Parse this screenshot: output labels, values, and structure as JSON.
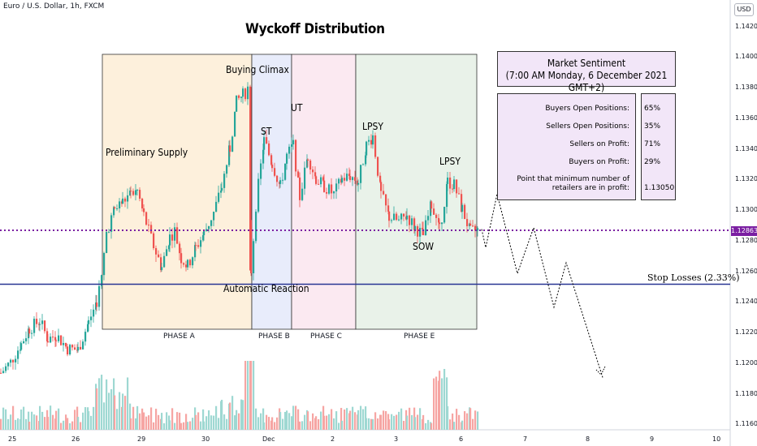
{
  "header": {
    "symbol": "Euro / U.S. Dollar, 1h, FXCM",
    "currency": "USD",
    "title": "Wyckoff Distribution"
  },
  "annotations": {
    "preliminary_supply": "Preliminary Supply",
    "buying_climax": "Buying Climax",
    "st": "ST",
    "ut": "UT",
    "lpsy1": "LPSY",
    "lpsy2": "LPSY",
    "sow": "SOW",
    "automatic_reaction": "Automatic Reaction",
    "stop_losses": "Stop Losses (2.33%)"
  },
  "phases": [
    {
      "label": "PHASE A",
      "color": "#fdf0dc"
    },
    {
      "label": "PHASE B",
      "color": "#e8ecfb"
    },
    {
      "label": "PHASE C",
      "color": "#fbe9f1"
    },
    {
      "label": "PHASE E",
      "color": "#e9f2e9"
    }
  ],
  "sentiment": {
    "title": "Market Sentiment",
    "subtitle": "(7:00 AM Monday, 6 December 2021 GMT+2)",
    "rows": [
      {
        "label": "Buyers Open Positions:",
        "value": "65%"
      },
      {
        "label": "Sellers Open Positions:",
        "value": "35%"
      },
      {
        "label": "Sellers on Profit:",
        "value": "71%"
      },
      {
        "label": "Buyers on Profit:",
        "value": "29%"
      },
      {
        "label": "Point that minimum number of retailers are in profit:",
        "value": "1.13050"
      }
    ]
  },
  "chart_data": {
    "type": "candlestick",
    "current_price": "1.12863",
    "stop_level": 1.1251,
    "y_ticks": [
      "1.14200",
      "1.14000",
      "1.13800",
      "1.13600",
      "1.13400",
      "1.13200",
      "1.13000",
      "1.12800",
      "1.12600",
      "1.12400",
      "1.12200",
      "1.12000",
      "1.11800",
      "1.11600"
    ],
    "x_ticks": [
      "25",
      "26",
      "29",
      "30",
      "Dec",
      "2",
      "3",
      "6",
      "7",
      "8",
      "9",
      "10"
    ],
    "colors": {
      "up": "#26a69a",
      "down": "#ef5350",
      "volume_up": "#9ed8d2",
      "volume_down": "#f6a5a3",
      "stop_line": "#283593",
      "price_line": "#7b1fa2"
    },
    "projection": [
      1.1287,
      1.1275,
      1.131,
      1.1258,
      1.1288,
      1.1236,
      1.1265,
      1.119
    ]
  }
}
